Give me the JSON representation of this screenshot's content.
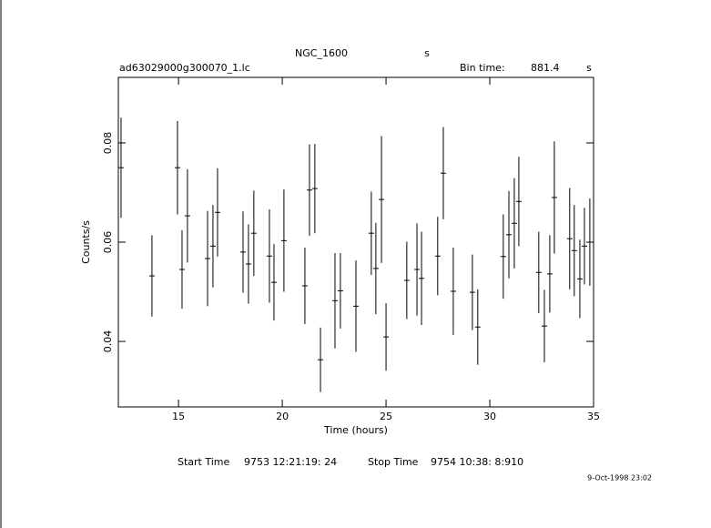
{
  "chart_data": {
    "type": "errorbar",
    "title": "NGC_1600",
    "title_suffix": "s",
    "filename": "ad63029000g300070_1.lc",
    "bin_time_label": "Bin time:",
    "bin_time": "881.4",
    "bin_time_unit": "s",
    "xlabel": "Time (hours)",
    "ylabel": "Counts/s",
    "start_time_label": "Start Time",
    "start_time": "9753 12:21:19: 24",
    "stop_time_label": "Stop Time",
    "stop_time": "9754 10:38: 8:910",
    "date": "9-Oct-1998 23:02",
    "color": "#000000",
    "xlim": [
      12.1,
      35
    ],
    "xticks": [
      15,
      20,
      25,
      30,
      35
    ],
    "ylim": [
      0.0268,
      0.0932
    ],
    "yticks": [
      0.04,
      0.06,
      0.08
    ],
    "x": [
      12.23,
      13.72,
      14.95,
      15.17,
      15.43,
      16.4,
      16.66,
      16.88,
      18.11,
      18.37,
      18.63,
      19.38,
      19.6,
      20.08,
      21.09,
      21.31,
      21.57,
      21.84,
      22.54,
      22.8,
      23.55,
      24.29,
      24.51,
      24.78,
      25.0,
      26.0,
      26.49,
      26.71,
      27.49,
      27.76,
      28.24,
      29.16,
      29.42,
      30.65,
      30.92,
      31.18,
      31.4,
      32.36,
      32.63,
      32.89,
      33.11,
      33.85,
      34.07,
      34.34,
      34.56,
      34.82
    ],
    "values": [
      0.075,
      0.0532,
      0.075,
      0.0545,
      0.0653,
      0.0567,
      0.0592,
      0.066,
      0.058,
      0.0556,
      0.0618,
      0.0572,
      0.0519,
      0.0603,
      0.0512,
      0.0705,
      0.0708,
      0.0363,
      0.0482,
      0.0502,
      0.0471,
      0.0618,
      0.0547,
      0.0686,
      0.0409,
      0.0523,
      0.0545,
      0.0527,
      0.0572,
      0.0739,
      0.0501,
      0.0499,
      0.0429,
      0.0571,
      0.0615,
      0.0638,
      0.0682,
      0.0539,
      0.0431,
      0.0536,
      0.069,
      0.0607,
      0.0583,
      0.0526,
      0.0592,
      0.06
    ],
    "errors": [
      0.0101,
      0.0082,
      0.0094,
      0.0079,
      0.0094,
      0.0096,
      0.0083,
      0.0089,
      0.0082,
      0.008,
      0.0086,
      0.0094,
      0.0077,
      0.0103,
      0.0077,
      0.0092,
      0.009,
      0.0065,
      0.0096,
      0.0076,
      0.0092,
      0.0084,
      0.0092,
      0.0128,
      0.0068,
      0.0078,
      0.0093,
      0.0094,
      0.0079,
      0.0093,
      0.0088,
      0.0076,
      0.0076,
      0.0085,
      0.0088,
      0.0091,
      0.009,
      0.0082,
      0.0073,
      0.0078,
      0.0113,
      0.0102,
      0.0092,
      0.0079,
      0.0077,
      0.0088
    ]
  }
}
